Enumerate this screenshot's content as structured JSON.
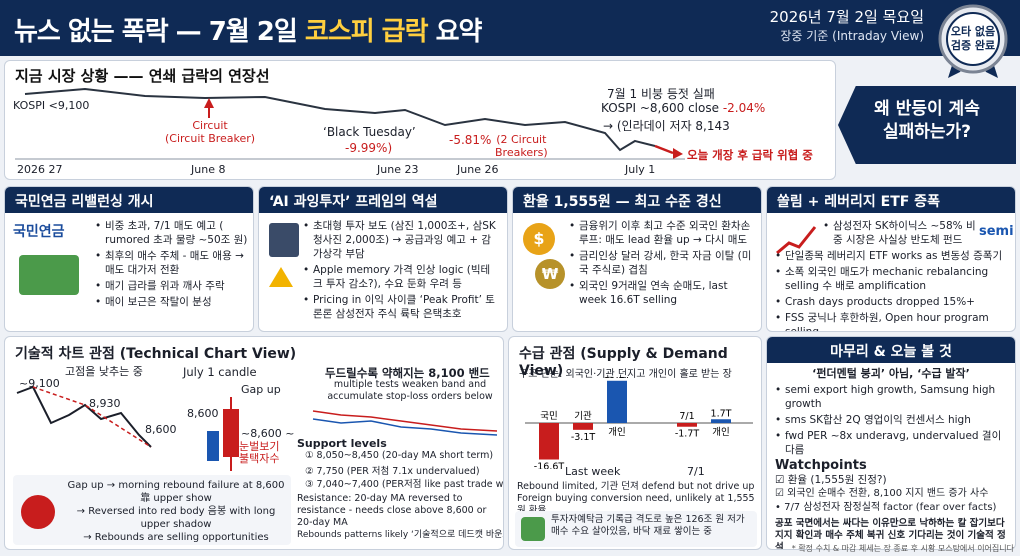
{
  "header": {
    "title_a": "뉴스 없는 폭락 — 7월 2일 ",
    "title_hl": "코스피 급락",
    "title_b": " 요약",
    "date": "2026년 7월 2일 목요일",
    "basis": "장중 기준 (Intraday View)",
    "seal_line1": "오타 없음",
    "seal_line2": "검증 완료"
  },
  "market": {
    "title": "지금 시장 상황 —— 연쇄 급락의 연장선",
    "kospi_start": "KOSPI <9,100",
    "circuit": "Circuit\n(Circuit Breaker)",
    "black_tuesday": "‘Black Tuesday’",
    "bt_pct": "-9.99%)",
    "drop_pct": "-5.81%",
    "circuit2": "(2 Circuit\nBreakers)",
    "jul1_title": "7월 1 비붕 등젓 실패",
    "jul1_kospi": "KOSPI ~8,600 close ",
    "jul1_pct": "-2.04%",
    "jul1_low": "→ (인라데이 저자 8,143",
    "today": "오늘 개장 후 급락 위협 중",
    "x_labels": [
      "2026 27",
      "June 8",
      "June 23",
      "June 26",
      "July 1"
    ],
    "callout_1": "왜 반등이 계속",
    "callout_2": "실패하는가?"
  },
  "cards_row1": [
    {
      "title": "국민연금 리밸런싱 개시",
      "logo": "국민연금",
      "items": [
        "비중 초과, 7/1 매도 예고 ( rumored 초과 물량 ~50조 원)",
        "최후의 매수 주체 - 매도 애용 → 매도 대가저 전환",
        "매기 급라를 위과 깨사 주락",
        "매이 보근은 작탈이 분성"
      ]
    },
    {
      "title": "‘AI 과잉투자’ 프레임의 역설",
      "items": [
        "초대형 투자 보도 (삼진 1,000조+, 삼SK 청사진 2,000조) → 공급과잉 예고 + 감가상각 부담",
        "Apple memory 가격 인상 logic (빅테크 투자 감소?), 수요 둔화 우려 등",
        "Pricing in 이익 사이클 ‘Peak Profit’ 토론론 삼성전자 주식 륙탁 은택초호"
      ]
    },
    {
      "title": "환율 1,555원 — 최고 수준 경신",
      "items": [
        "금융위기 이후 최고 수준 외국인 환차손 루프: 매도 lead 환율 up → 다시 매도",
        "금리인상 달러 강세, 한국 자금 이탈 (미국 주식로) 겹침",
        "외국인 9거래일 연속 순매도, last week 16.6T selling"
      ]
    },
    {
      "title": "쏠림 + 레버리지 ETF 증폭",
      "items": [
        "삼성전자 SK하이닉스 ~58% 비중 시장은 사실상 반도체 펀드",
        "단일종목 레버리지 ETF works as 변동성 증폭기",
        "소폭 외국인 매도가 mechanic rebalancing selling 수 배로 amplification",
        "Crash days products dropped 15%+",
        "FSS 궁닉나 후한하원, Open hour program selling"
      ]
    }
  ],
  "tech": {
    "title": "기술적 차트 관점 (Technical Chart View)",
    "note_top": "고점을 낮추는 중",
    "p1": "~9,100",
    "p2": "8,930",
    "p3": "8,600",
    "candle_title": "July 1 candle",
    "gap_up": "Gap up",
    "c8600": "8,600",
    "c_low": "~8,600 ~",
    "c_note": "눈벌보기 불택자수",
    "band_title": "두드릴수록 약해지는 8,100 밴드",
    "band_sub": "multiple tests weaken band and accumulate stop-loss orders below",
    "support_title": "Support levels",
    "supports": [
      "① 8,050~8,450 (20-day MA short term)",
      "② 7,750 (PER 저첨 7.1x undervalued)",
      "③ 7,040~7,400 (PER저점 like past trade wars)"
    ],
    "resistance": "Resistance: 20-day MA reversed to resistance - needs close above 8,600 or 20-day MA",
    "gap_note": "Gap up → morning rebound failure at 8,600 靠 upper show\n→ Reversed into red body 음봉 with long upper shadow\n→ Rebounds are selling opportunities",
    "rebound": "Rebounds patterns likely ‘기술적으로 데드캣 바운스’"
  },
  "supply": {
    "title": "수급 관점 (Supply & Demand View)",
    "struct": "구조 단순: 외국인·기관 던지고 개인이 홀로 받는 장",
    "week_label": "Last week",
    "day_label": "7/1",
    "bullets": [
      "Rebound limited, 기관 던져 defend but not drive up",
      "Foreign buying conversion need, unlikely at 1,555원 환율"
    ],
    "bottom": "투자자예탁금 기록급 격도로 높은 126조 원 저가 매수 수요 살아있음, 바닥 재료 쌓이는 중"
  },
  "chart_data": [
    {
      "type": "bar",
      "title": "Last week",
      "categories": [
        "국민",
        "기관",
        "개인"
      ],
      "values": [
        -16.6,
        -3.1,
        19.2
      ],
      "labels": [
        "-16.6T",
        "-3.1T",
        "19.2T"
      ]
    },
    {
      "type": "bar",
      "title": "7/1",
      "categories": [
        "7/1",
        "개인"
      ],
      "values": [
        -1.7,
        1.7
      ],
      "labels": [
        "-1.7T",
        "1.7T"
      ]
    }
  ],
  "wrap": {
    "title": "마무리 & 오늘 볼 것",
    "quote": "‘펀더멘털 붕괴’ 아님, ‘수급 발작’",
    "items": [
      "semi export high growth, Samsung high growth",
      "sms SK합산 2Q 영업이익 컨센서스 high",
      "fwd PER ~8x underavg, undervalued 결이 다름"
    ],
    "watch_title": "Watchpoints",
    "watch": [
      "☑ 환율 (1,555원 진정?)",
      "☑ 외국인 순매수 전환, 8,100 지지 밴드 증가 사수",
      "• 7/7 삼성전자 잠정실적 factor (fear over facts)"
    ],
    "closing": "공포 국면에서는 싸다는 이유만으로 낙하하는 칼 잡기보다 지지 확인과 매수 주체 복귀 신호 기다리는 것이 기술적 정석"
  },
  "footnote": "* 확정 수치 & 마감 체세는 장 종료 후 시황 모스탕에서 이어집니다"
}
